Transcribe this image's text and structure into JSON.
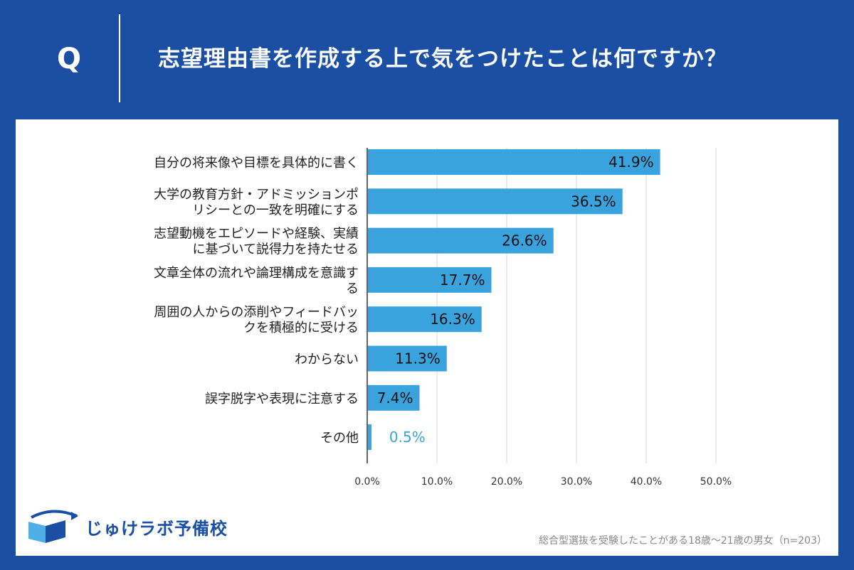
{
  "header": {
    "q_mark": "Q",
    "question": "志望理由書を作成する上で気をつけたことは何ですか？"
  },
  "footer": {
    "logo_text": "じゅけラボ予備校",
    "note": "総合型選抜を受験したことがある18歳～21歳の男女（n=203）"
  },
  "colors": {
    "header_bg": "#1a4fa3",
    "bar": "#3aa3de",
    "grid": "#d9d9d9"
  },
  "chart_data": {
    "type": "bar",
    "orientation": "horizontal",
    "title": "",
    "xlabel": "",
    "ylabel": "",
    "xlim": [
      0,
      50
    ],
    "ticks": [
      "0.0%",
      "10.0%",
      "20.0%",
      "30.0%",
      "40.0%",
      "50.0%"
    ],
    "tick_values": [
      0,
      10,
      20,
      30,
      40,
      50
    ],
    "grid": true,
    "categories": [
      [
        "自分の将来像や目標を具体的に書く"
      ],
      [
        "大学の教育方針・アドミッションポ",
        "リシーとの一致を明確にする"
      ],
      [
        "志望動機をエピソードや経験、実績",
        "に基づいて説得力を持たせる"
      ],
      [
        "文章全体の流れや論理構成を意識す",
        "る"
      ],
      [
        "周囲の人からの添削やフィードバッ",
        "クを積極的に受ける"
      ],
      [
        "わからない"
      ],
      [
        "誤字脱字や表現に注意する"
      ],
      [
        "その他"
      ]
    ],
    "values": [
      41.9,
      36.5,
      26.6,
      17.7,
      16.3,
      11.3,
      7.4,
      0.5
    ],
    "value_labels": [
      "41.9%",
      "36.5%",
      "26.6%",
      "17.7%",
      "16.3%",
      "11.3%",
      "7.4%",
      "0.5%"
    ]
  }
}
